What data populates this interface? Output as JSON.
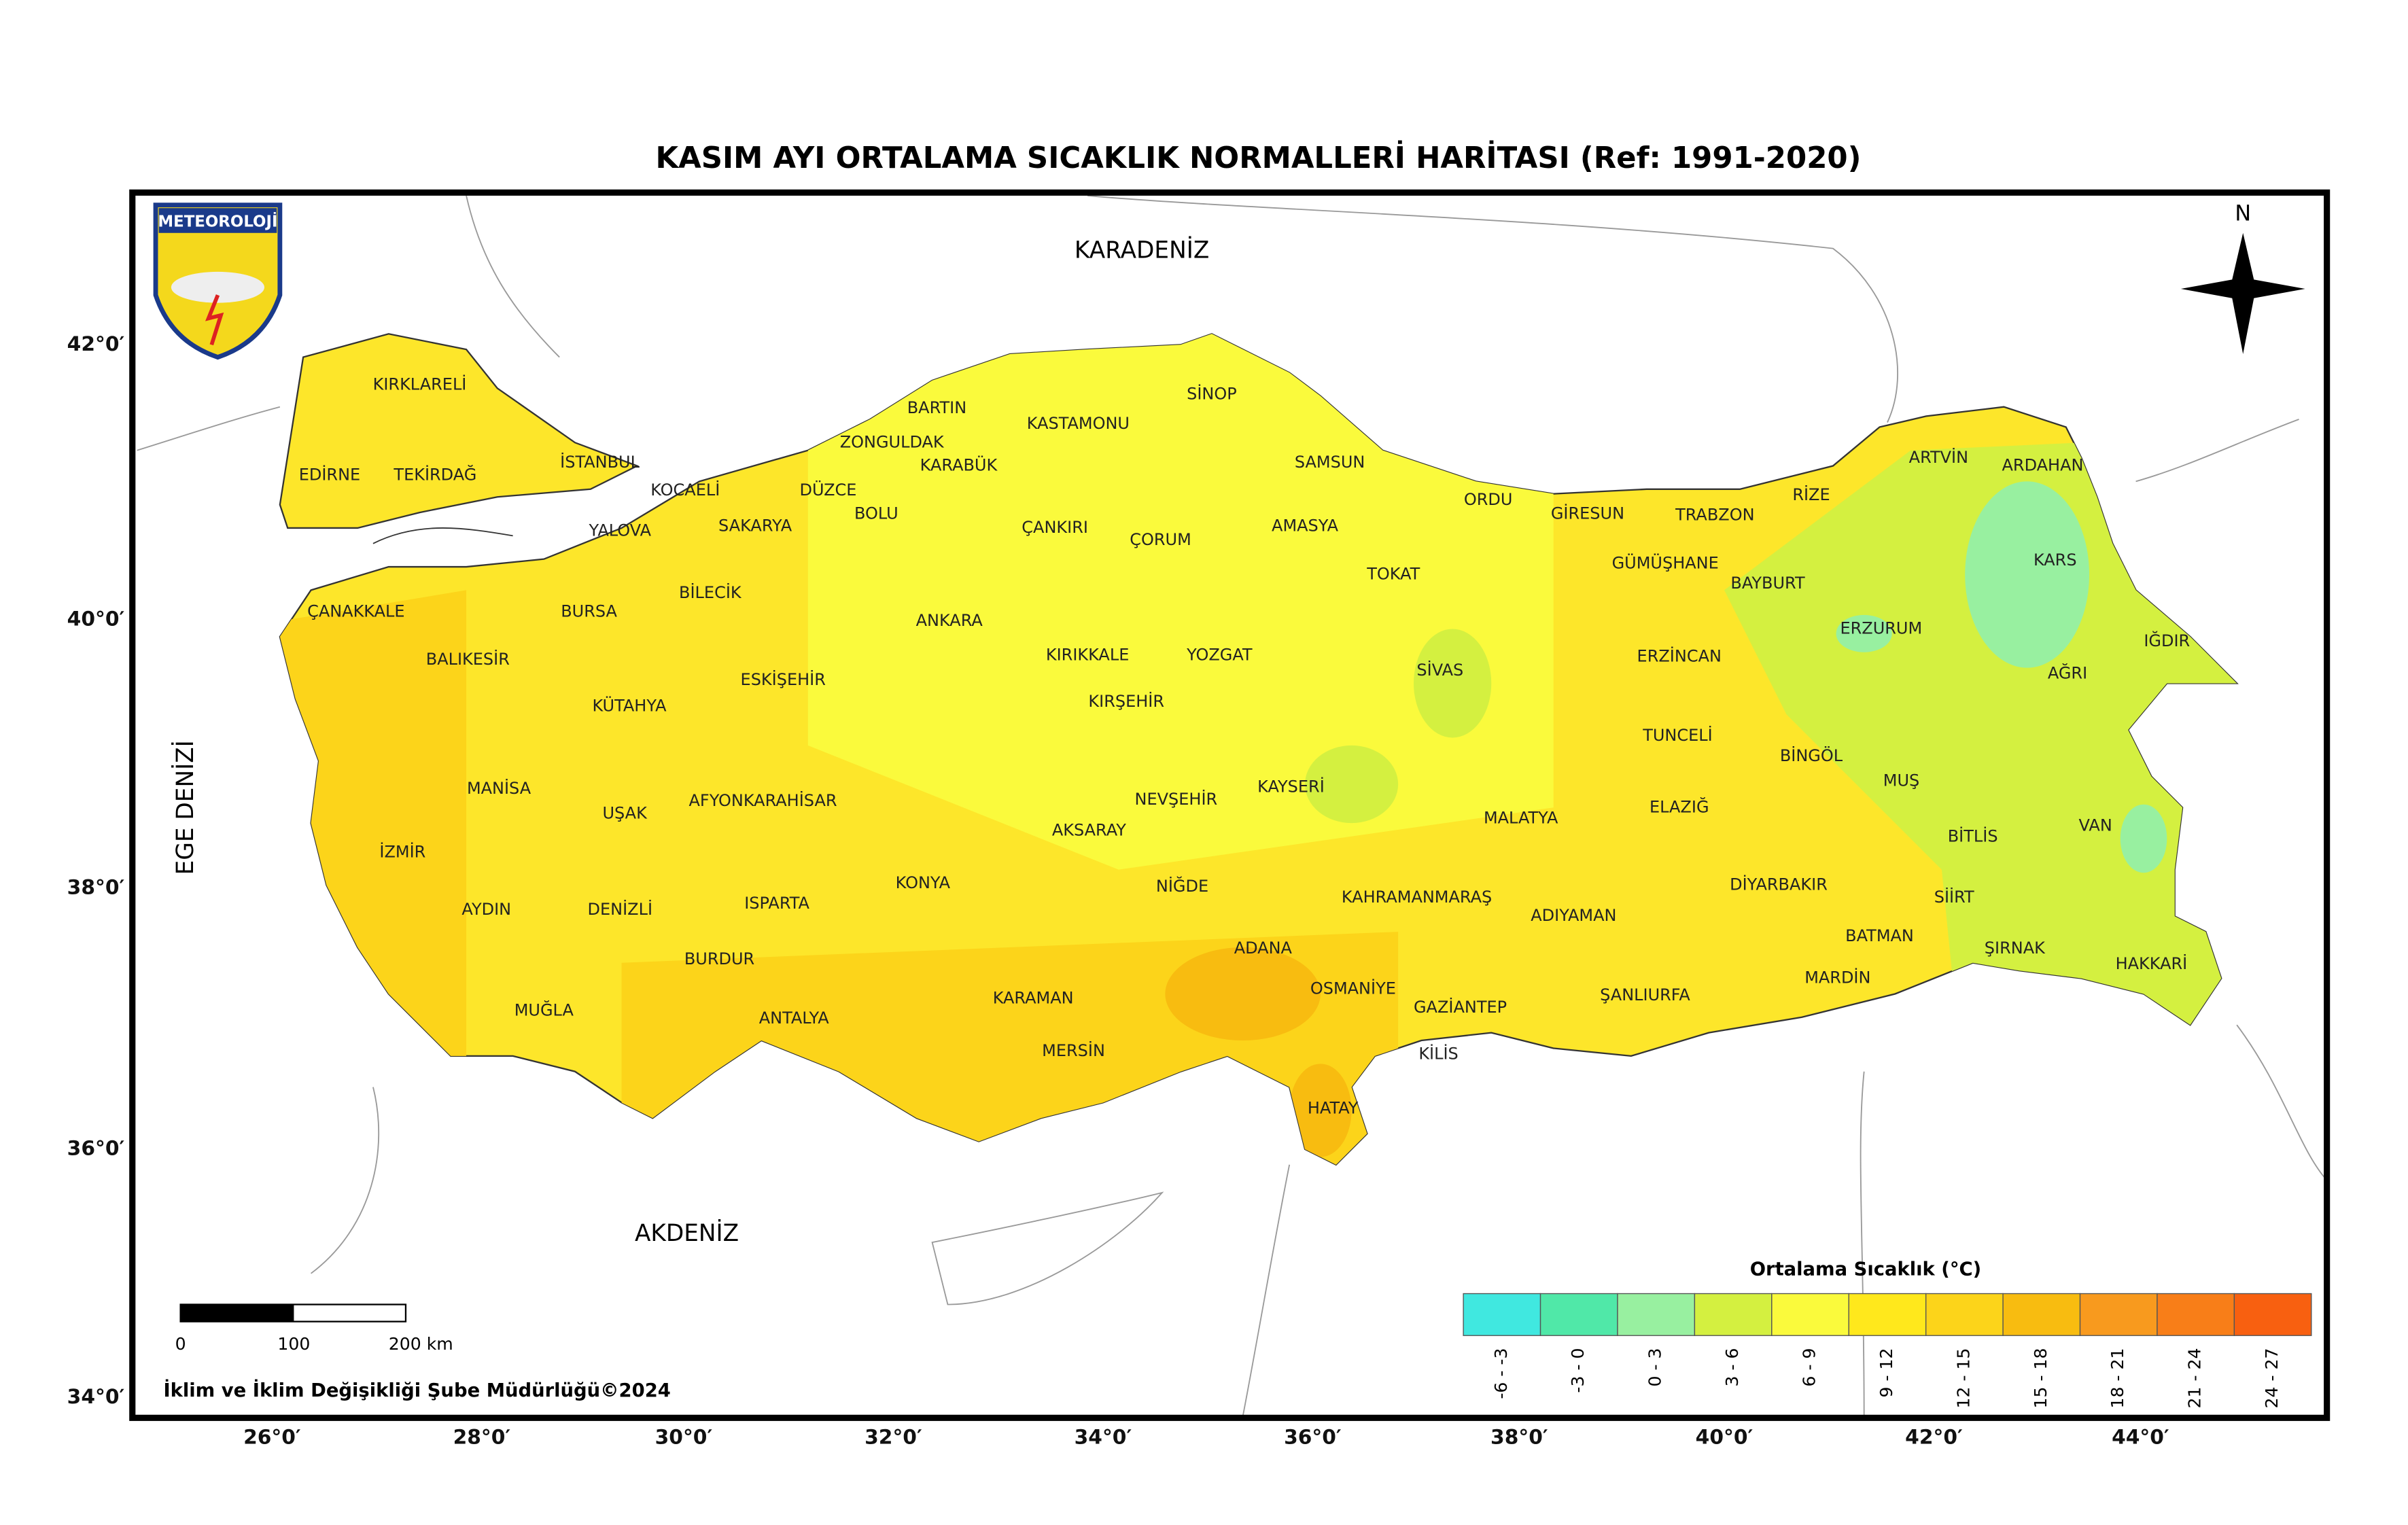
{
  "title": "KASIM AYI ORTALAMA SICAKLIK NORMALLERİ HARİTASI (Ref: 1991-2020)",
  "logo": "METEOROLOJİ",
  "north": "N",
  "seas": [
    "KARADENİZ",
    "EGE DENİZİ",
    "AKDENİZ"
  ],
  "provinces": [
    "KIRKLARELİ",
    "EDİRNE",
    "TEKİRDAĞ",
    "İSTANBUL",
    "KOCAELİ",
    "YALOVA",
    "SAKARYA",
    "DÜZCE",
    "ZONGULDAK",
    "BARTIN",
    "KARABÜK",
    "BOLU",
    "KASTAMONU",
    "SİNOP",
    "SAMSUN",
    "ÇANKIRI",
    "ÇORUM",
    "AMASYA",
    "ORDU",
    "GİRESUN",
    "TRABZON",
    "RİZE",
    "ARTVİN",
    "ARDAHAN",
    "KARS",
    "IĞDIR",
    "AĞRI",
    "ERZURUM",
    "BAYBURT",
    "GÜMÜŞHANE",
    "TOKAT",
    "SİVAS",
    "ERZİNCAN",
    "YOZGAT",
    "KIRIKKALE",
    "KIRŞEHİR",
    "ANKARA",
    "ESKİŞEHİR",
    "BİLECİK",
    "BURSA",
    "ÇANAKKALE",
    "BALIKESİR",
    "KÜTAHYA",
    "MANİSA",
    "UŞAK",
    "AFYONKARAHİSAR",
    "İZMİR",
    "AYDIN",
    "DENİZLİ",
    "ISPARTA",
    "BURDUR",
    "MUĞLA",
    "ANTALYA",
    "KONYA",
    "AKSARAY",
    "NEVŞEHİR",
    "NİĞDE",
    "KAYSERİ",
    "KARAMAN",
    "MERSİN",
    "ADANA",
    "OSMANİYE",
    "HATAY",
    "KAHRAMANMARAŞ",
    "GAZİANTEP",
    "KİLİS",
    "MALATYA",
    "ADIYAMAN",
    "ŞANLIURFA",
    "TUNCELİ",
    "ELAZIĞ",
    "BİNGÖL",
    "MUŞ",
    "BİTLİS",
    "VAN",
    "DİYARBAKIR",
    "MARDİN",
    "BATMAN",
    "SİİRT",
    "ŞIRNAK",
    "HAKKARİ"
  ],
  "lat_ticks": [
    "42°0′",
    "40°0′",
    "38°0′",
    "36°0′",
    "34°0′"
  ],
  "lon_ticks": [
    "26°0′",
    "28°0′",
    "30°0′",
    "32°0′",
    "34°0′",
    "36°0′",
    "38°0′",
    "40°0′",
    "42°0′",
    "44°0′"
  ],
  "scale_bar": [
    "0",
    "100",
    "200 km"
  ],
  "credit": "İklim ve İklim Değişikliği Şube Müdürlüğü©2024",
  "legend": {
    "title": "Ortalama Sıcaklık (°C)",
    "classes": [
      {
        "label": "-6 - -3",
        "color": "#40e8e0"
      },
      {
        "label": "-3 - 0",
        "color": "#50e8a8"
      },
      {
        "label": "0 - 3",
        "color": "#98f0a0"
      },
      {
        "label": "3 - 6",
        "color": "#d4f040"
      },
      {
        "label": "6 - 9",
        "color": "#fafa3c"
      },
      {
        "label": "9 - 12",
        "color": "#ffe81c"
      },
      {
        "label": "12 - 15",
        "color": "#fcd41a"
      },
      {
        "label": "15 - 18",
        "color": "#f8bc10"
      },
      {
        "label": "18 - 21",
        "color": "#f89a1e"
      },
      {
        "label": "21 - 24",
        "color": "#f87e18"
      },
      {
        "label": "24 - 27",
        "color": "#f86010"
      }
    ]
  }
}
